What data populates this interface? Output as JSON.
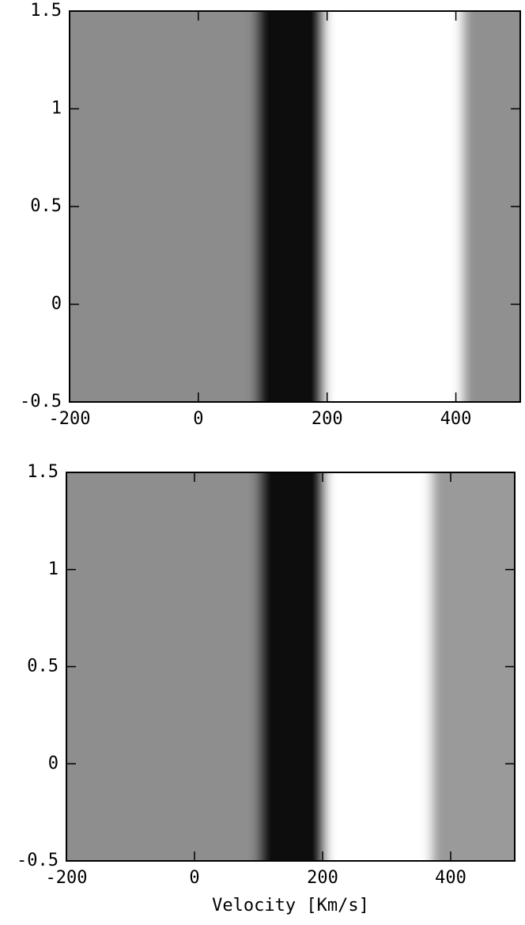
{
  "chart_data": [
    {
      "type": "image",
      "xlim": [
        -200,
        500
      ],
      "ylim": [
        -0.5,
        1.5
      ],
      "xticks": [
        -200,
        0,
        200,
        400
      ],
      "yticks": [
        -0.5,
        0,
        0.5,
        1,
        1.5
      ],
      "bands": [
        {
          "x0": -200,
          "x1": 90,
          "color": "#8c8c8c"
        },
        {
          "x0": 90,
          "x1": 196,
          "color": "#111111"
        },
        {
          "x0": 196,
          "x1": 410,
          "color": "#ffffff"
        },
        {
          "x0": 410,
          "x1": 500,
          "color": "#909090"
        }
      ]
    },
    {
      "type": "image",
      "xlim": [
        -200,
        500
      ],
      "ylim": [
        -0.5,
        1.5
      ],
      "xticks": [
        -200,
        0,
        200,
        400
      ],
      "yticks": [
        -0.5,
        0,
        0.5,
        1,
        1.5
      ],
      "xlabel": "Velocity [Km/s]",
      "bands": [
        {
          "x0": -200,
          "x1": 100,
          "color": "#8e8e8e"
        },
        {
          "x0": 100,
          "x1": 205,
          "color": "#111111"
        },
        {
          "x0": 205,
          "x1": 370,
          "color": "#ffffff"
        },
        {
          "x0": 370,
          "x1": 500,
          "color": "#9a9a9a"
        }
      ]
    }
  ]
}
